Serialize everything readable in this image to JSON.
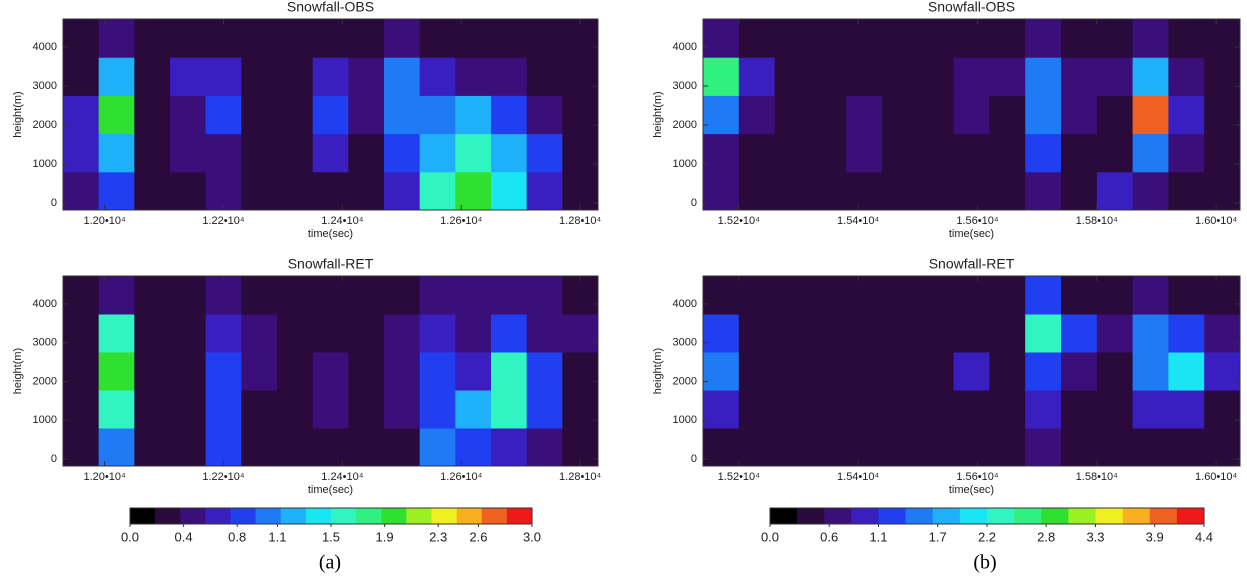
{
  "chart_data": [
    {
      "type": "heatmap",
      "title": "Snowfall-OBS",
      "xlabel": "time(sec)",
      "ylabel": "height(m)",
      "x": [
        11960,
        12020,
        12080,
        12140,
        12200,
        12260,
        12320,
        12380,
        12440,
        12500,
        12560,
        12620,
        12680,
        12740,
        12800
      ],
      "y": [
        310,
        1290,
        2270,
        3250,
        4230
      ],
      "values": [
        [
          0.5,
          0.9,
          0.3,
          0.3,
          0.4,
          0.3,
          0.3,
          0.3,
          0.3,
          0.6,
          1.5,
          1.9,
          1.4,
          0.6,
          0.3
        ],
        [
          0.6,
          1.2,
          0.3,
          0.4,
          0.5,
          0.3,
          0.3,
          0.7,
          0.3,
          0.8,
          1.3,
          1.5,
          1.2,
          0.9,
          0.3
        ],
        [
          0.7,
          2.0,
          0.3,
          0.5,
          0.9,
          0.3,
          0.3,
          0.9,
          0.4,
          1.0,
          1.1,
          1.2,
          0.9,
          0.5,
          0.3
        ],
        [
          0.3,
          1.3,
          0.3,
          0.6,
          0.7,
          0.3,
          0.3,
          0.6,
          0.5,
          1.0,
          0.6,
          0.5,
          0.4,
          0.3,
          0.3
        ],
        [
          0.3,
          0.5,
          0.3,
          0.3,
          0.3,
          0.3,
          0.3,
          0.3,
          0.3,
          0.4,
          0.3,
          0.3,
          0.3,
          0.3,
          0.3
        ]
      ],
      "xlim": [
        11930,
        12830
      ],
      "ylim": [
        -180,
        4720
      ],
      "xticks": [
        {
          "value": 12000,
          "label": "1.20•10⁴"
        },
        {
          "value": 12200,
          "label": "1.22•10⁴"
        },
        {
          "value": 12400,
          "label": "1.24•10⁴"
        },
        {
          "value": 12600,
          "label": "1.26•10⁴"
        },
        {
          "value": 12800,
          "label": "1.28•10⁴"
        }
      ],
      "yticks": [
        0,
        1000,
        2000,
        3000,
        4000
      ]
    },
    {
      "type": "heatmap",
      "title": "Snowfall-RET",
      "xlabel": "time(sec)",
      "ylabel": "height(m)",
      "x": [
        11960,
        12020,
        12080,
        12140,
        12200,
        12260,
        12320,
        12380,
        12440,
        12500,
        12560,
        12620,
        12680,
        12740,
        12800
      ],
      "y": [
        310,
        1290,
        2270,
        3250,
        4230
      ],
      "values": [
        [
          0.3,
          1.1,
          0.3,
          0.3,
          0.9,
          0.3,
          0.3,
          0.3,
          0.3,
          0.3,
          1.0,
          0.9,
          0.6,
          0.4,
          0.3
        ],
        [
          0.3,
          1.5,
          0.3,
          0.3,
          0.8,
          0.3,
          0.3,
          0.4,
          0.3,
          0.4,
          0.9,
          1.2,
          1.6,
          0.9,
          0.3
        ],
        [
          0.3,
          2.0,
          0.3,
          0.3,
          0.8,
          0.5,
          0.3,
          0.4,
          0.3,
          0.4,
          0.9,
          0.7,
          1.5,
          0.8,
          0.3
        ],
        [
          0.3,
          1.6,
          0.3,
          0.3,
          0.6,
          0.5,
          0.3,
          0.3,
          0.3,
          0.4,
          0.6,
          0.5,
          0.8,
          0.5,
          0.4
        ],
        [
          0.3,
          0.4,
          0.3,
          0.3,
          0.4,
          0.3,
          0.3,
          0.3,
          0.3,
          0.3,
          0.4,
          0.4,
          0.4,
          0.4,
          0.3
        ]
      ],
      "xlim": [
        11930,
        12830
      ],
      "ylim": [
        -180,
        4720
      ],
      "xticks": [
        {
          "value": 12000,
          "label": "1.20•10⁴"
        },
        {
          "value": 12200,
          "label": "1.22•10⁴"
        },
        {
          "value": 12400,
          "label": "1.24•10⁴"
        },
        {
          "value": 12600,
          "label": "1.26•10⁴"
        },
        {
          "value": 12800,
          "label": "1.28•10⁴"
        }
      ],
      "yticks": [
        0,
        1000,
        2000,
        3000,
        4000
      ]
    },
    {
      "type": "heatmap",
      "title": "Snowfall-OBS",
      "xlabel": "time(sec)",
      "ylabel": "height(m)",
      "x": [
        15170,
        15230,
        15290,
        15350,
        15410,
        15470,
        15530,
        15590,
        15650,
        15710,
        15770,
        15830,
        15890,
        15950,
        16010
      ],
      "y": [
        310,
        1290,
        2270,
        3250,
        4230
      ],
      "values": [
        [
          0.6,
          0.5,
          0.4,
          0.4,
          0.4,
          0.4,
          0.4,
          0.4,
          0.4,
          0.8,
          0.5,
          0.9,
          0.7,
          0.5,
          0.4
        ],
        [
          0.8,
          0.5,
          0.4,
          0.4,
          0.6,
          0.4,
          0.4,
          0.5,
          0.4,
          1.3,
          0.5,
          0.4,
          1.4,
          0.7,
          0.4
        ],
        [
          1.6,
          0.7,
          0.4,
          0.4,
          0.6,
          0.4,
          0.5,
          0.6,
          0.5,
          1.4,
          0.6,
          0.5,
          3.9,
          0.9,
          0.5
        ],
        [
          2.6,
          0.9,
          0.4,
          0.4,
          0.4,
          0.4,
          0.5,
          0.7,
          0.6,
          1.5,
          0.6,
          0.6,
          1.9,
          0.8,
          0.5
        ],
        [
          0.6,
          0.4,
          0.4,
          0.4,
          0.4,
          0.4,
          0.4,
          0.4,
          0.4,
          0.7,
          0.4,
          0.4,
          0.7,
          0.4,
          0.4
        ]
      ],
      "xlim": [
        15140,
        16040
      ],
      "ylim": [
        -180,
        4720
      ],
      "xticks": [
        {
          "value": 15200,
          "label": "1.52•10⁴"
        },
        {
          "value": 15400,
          "label": "1.54•10⁴"
        },
        {
          "value": 15600,
          "label": "1.56•10⁴"
        },
        {
          "value": 15800,
          "label": "1.58•10⁴"
        },
        {
          "value": 16000,
          "label": "1.60•10⁴"
        }
      ],
      "yticks": [
        0,
        1000,
        2000,
        3000,
        4000
      ]
    },
    {
      "type": "heatmap",
      "title": "Snowfall-RET",
      "xlabel": "time(sec)",
      "ylabel": "height(m)",
      "x": [
        15170,
        15230,
        15290,
        15350,
        15410,
        15470,
        15530,
        15590,
        15650,
        15710,
        15770,
        15830,
        15890,
        15950,
        16010
      ],
      "y": [
        310,
        1290,
        2270,
        3250,
        4230
      ],
      "values": [
        [
          0.5,
          0.4,
          0.4,
          0.4,
          0.4,
          0.4,
          0.4,
          0.4,
          0.4,
          0.6,
          0.4,
          0.4,
          0.4,
          0.5,
          0.4
        ],
        [
          0.9,
          0.4,
          0.4,
          0.4,
          0.4,
          0.4,
          0.4,
          0.4,
          0.4,
          0.9,
          0.5,
          0.4,
          0.9,
          0.9,
          0.5
        ],
        [
          1.6,
          0.4,
          0.4,
          0.4,
          0.4,
          0.4,
          0.4,
          1.0,
          0.4,
          1.3,
          0.7,
          0.4,
          1.4,
          2.0,
          0.9
        ],
        [
          1.3,
          0.4,
          0.4,
          0.4,
          0.4,
          0.4,
          0.4,
          0.5,
          0.4,
          2.3,
          1.1,
          0.6,
          1.6,
          1.2,
          0.6
        ],
        [
          0.5,
          0.4,
          0.4,
          0.4,
          0.4,
          0.4,
          0.4,
          0.4,
          0.4,
          1.2,
          0.5,
          0.4,
          0.6,
          0.5,
          0.4
        ]
      ],
      "xlim": [
        15140,
        16040
      ],
      "ylim": [
        -180,
        4720
      ],
      "xticks": [
        {
          "value": 15200,
          "label": "1.52•10⁴"
        },
        {
          "value": 15400,
          "label": "1.54•10⁴"
        },
        {
          "value": 15600,
          "label": "1.56•10⁴"
        },
        {
          "value": 15800,
          "label": "1.58•10⁴"
        },
        {
          "value": 16000,
          "label": "1.60•10⁴"
        }
      ],
      "yticks": [
        0,
        1000,
        2000,
        3000,
        4000
      ]
    }
  ],
  "colorbars": [
    {
      "caption": "(a)",
      "clim": [
        0,
        3.0
      ],
      "colors": [
        "#000000",
        "#2a0a3a",
        "#3b0f7a",
        "#3a1fc0",
        "#1f3ff0",
        "#1e7af5",
        "#1fb0fa",
        "#19e6f0",
        "#30f5c0",
        "#30f080",
        "#30e030",
        "#9af020",
        "#f0f020",
        "#f8b020",
        "#f06020",
        "#f01818"
      ],
      "ticks": [
        {
          "value": 0,
          "label": "0.0"
        },
        0.4,
        0.8,
        1.1,
        1.5,
        1.9,
        2.3,
        2.6,
        {
          "value": 3.0,
          "label": "3.0"
        }
      ]
    },
    {
      "caption": "(b)",
      "clim": [
        0,
        4.4
      ],
      "colors": [
        "#000000",
        "#2a0a3a",
        "#3b0f7a",
        "#3a1fc0",
        "#1f3ff0",
        "#1e7af5",
        "#1fb0fa",
        "#19e6f0",
        "#30f5c0",
        "#30f080",
        "#30e030",
        "#9af020",
        "#f0f020",
        "#f8b020",
        "#f06020",
        "#f01818"
      ],
      "ticks": [
        {
          "value": 0,
          "label": "0.0"
        },
        0.6,
        1.1,
        1.7,
        2.2,
        2.8,
        3.3,
        3.9,
        4.4
      ]
    }
  ]
}
